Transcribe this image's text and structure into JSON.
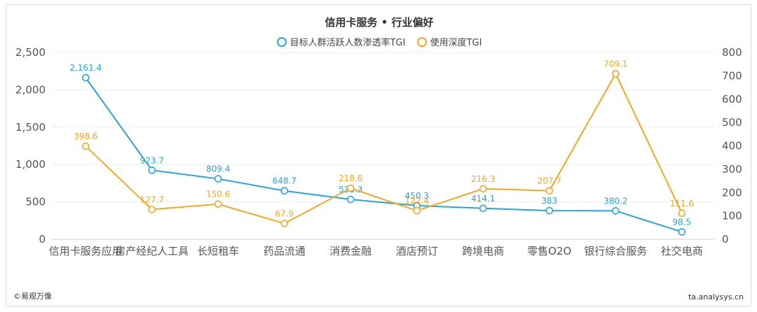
{
  "chart_data": {
    "type": "line",
    "title": "信用卡服务 • 行业偏好",
    "categories": [
      "信用卡服务应用",
      "房产经纪人工具",
      "长短租车",
      "药品流通",
      "消费金融",
      "酒店预订",
      "跨境电商",
      "零售O2O",
      "银行综合服务",
      "社交电商"
    ],
    "series": [
      {
        "name": "目标人群活跃人数渗透率TGI",
        "axis": "left",
        "color": "#29a3dc",
        "values": [
          2161.4,
          923.7,
          809.4,
          648.7,
          533.3,
          450.3,
          414.1,
          383,
          380.2,
          98.5
        ],
        "labels": [
          "2,161.4",
          "923.7",
          "809.4",
          "648.7",
          "533.3",
          "450.3",
          "414.1",
          "383",
          "380.2",
          "98.5"
        ]
      },
      {
        "name": "使用深度TGI",
        "axis": "right",
        "color": "#f5a623",
        "values": [
          398.6,
          127.7,
          150.6,
          67.9,
          218.6,
          122.4,
          216.3,
          207.7,
          709.1,
          111.6
        ],
        "labels": [
          "398.6",
          "127.7",
          "150.6",
          "67.9",
          "218.6",
          "122.4",
          "216.3",
          "207.7",
          "709.1",
          "111.6"
        ]
      }
    ],
    "y_left": {
      "min": 0,
      "max": 2500,
      "ticks": [
        0,
        500,
        1000,
        1500,
        2000,
        2500
      ],
      "tick_labels": [
        "0",
        "500",
        "1,000",
        "1,500",
        "2,000",
        "2,500"
      ]
    },
    "y_right": {
      "min": 0,
      "max": 800,
      "ticks": [
        0,
        100,
        200,
        300,
        400,
        500,
        600,
        700,
        800
      ],
      "tick_labels": [
        "0",
        "100",
        "200",
        "300",
        "400",
        "500",
        "600",
        "700",
        "800"
      ]
    },
    "grid": true,
    "legend": "top-center"
  },
  "footer": {
    "left": "©易观万像",
    "right": "ta.analysys.cn"
  }
}
